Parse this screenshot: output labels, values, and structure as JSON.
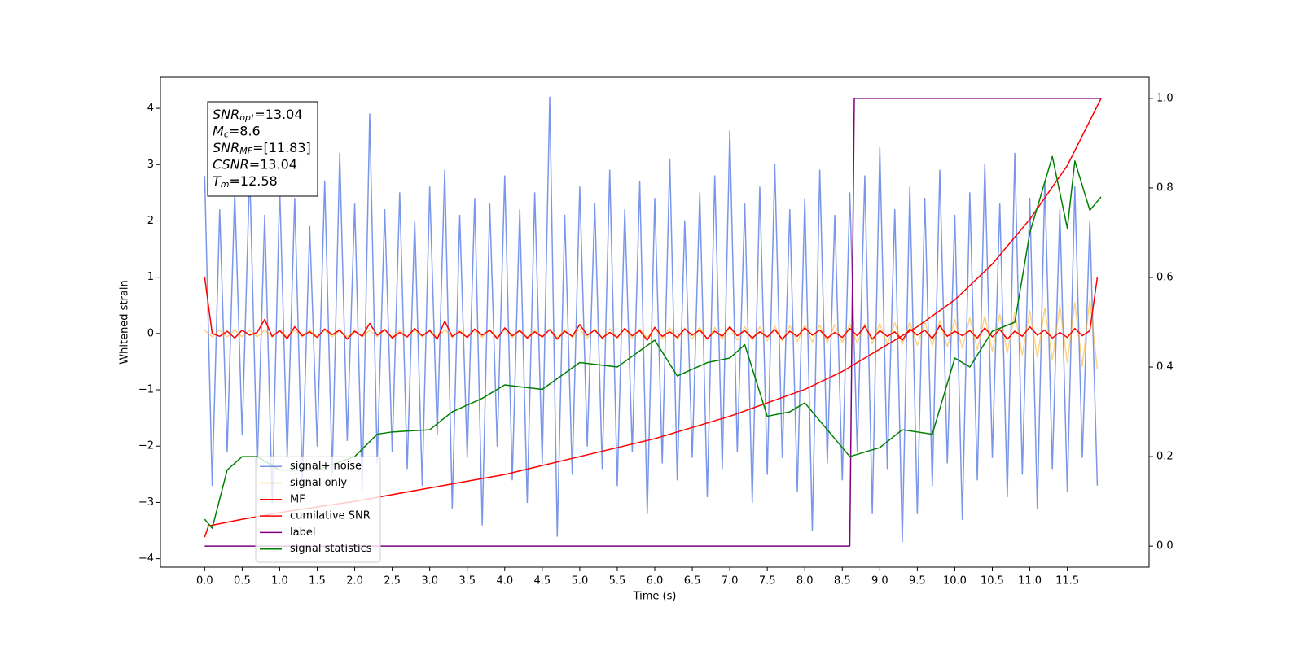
{
  "chart_data": {
    "type": "line",
    "xlabel": "Time (s)",
    "ylabel": "Whitened strain",
    "xlim": [
      -0.59,
      12.59
    ],
    "ylim": [
      -4.15,
      4.55
    ],
    "y2lim": [
      -0.047,
      1.047
    ],
    "xticks": [
      {
        "value": 0,
        "label": "0.0"
      },
      0.5,
      {
        "value": 1,
        "label": "1.0"
      },
      1.5,
      {
        "value": 2,
        "label": "2.0"
      },
      2.5,
      {
        "value": 3,
        "label": "3.0"
      },
      3.5,
      {
        "value": 4,
        "label": "4.0"
      },
      4.5,
      {
        "value": 5,
        "label": "5.0"
      },
      5.5,
      {
        "value": 6,
        "label": "6.0"
      },
      6.5,
      {
        "value": 7,
        "label": "7.0"
      },
      7.5,
      {
        "value": 8,
        "label": "8.0"
      },
      8.5,
      {
        "value": 9,
        "label": "9.0"
      },
      9.5,
      {
        "value": 10,
        "label": "10.0"
      },
      10.5,
      {
        "value": 11,
        "label": "11.0"
      },
      11.5
    ],
    "yticks": [
      {
        "value": -4,
        "label": "−4"
      },
      {
        "value": -3,
        "label": "−3"
      },
      {
        "value": -2,
        "label": "−2"
      },
      {
        "value": -1,
        "label": "−1"
      },
      0,
      1,
      2,
      3,
      4
    ],
    "y2ticks": [
      {
        "value": 0,
        "label": "0.0"
      },
      0.2,
      0.4,
      0.6,
      0.8,
      {
        "value": 1,
        "label": "1.0"
      }
    ],
    "legend": "lower left",
    "grid": false,
    "annotations": [
      {
        "text": "SNR",
        "sub": "opt",
        "value": "=13.04"
      },
      {
        "text": "M",
        "sub": "c",
        "value": "=8.6"
      },
      {
        "text": "SNR",
        "sub": "MF",
        "value": "=[11.83]"
      },
      {
        "text": "CSNR",
        "value": "=13.04"
      },
      {
        "text": "T",
        "sub": "m",
        "value": "=12.58"
      }
    ],
    "x": [
      0,
      0.1,
      0.2,
      0.3,
      0.4,
      0.5,
      0.6,
      0.7,
      0.8,
      0.9,
      1,
      1.1,
      1.2,
      1.3,
      1.4,
      1.5,
      1.6,
      1.7,
      1.8,
      1.9,
      2,
      2.1,
      2.2,
      2.3,
      2.4,
      2.5,
      2.6,
      2.7,
      2.8,
      2.9,
      3,
      3.1,
      3.2,
      3.3,
      3.4,
      3.5,
      3.6,
      3.7,
      3.8,
      3.9,
      4,
      4.1,
      4.2,
      4.3,
      4.4,
      4.5,
      4.6,
      4.7,
      4.8,
      4.9,
      5,
      5.1,
      5.2,
      5.3,
      5.4,
      5.5,
      5.6,
      5.7,
      5.8,
      5.9,
      6,
      6.1,
      6.2,
      6.3,
      6.4,
      6.5,
      6.6,
      6.7,
      6.8,
      6.9,
      7,
      7.1,
      7.2,
      7.3,
      7.4,
      7.5,
      7.6,
      7.7,
      7.8,
      7.9,
      8,
      8.1,
      8.2,
      8.3,
      8.4,
      8.5,
      8.6,
      8.7,
      8.8,
      8.9,
      9,
      9.1,
      9.2,
      9.3,
      9.4,
      9.5,
      9.6,
      9.7,
      9.8,
      9.9,
      10,
      10.1,
      10.2,
      10.3,
      10.4,
      10.5,
      10.6,
      10.7,
      10.8,
      10.9,
      11,
      11.1,
      11.2,
      11.3,
      11.4,
      11.5,
      11.6,
      11.7,
      11.8,
      11.9
    ],
    "series": [
      {
        "name": "signal+ noise",
        "color": "#4169e1",
        "alpha": 0.7,
        "values": [
          2.8,
          -2.7,
          2.2,
          -2.1,
          2.5,
          -1.8,
          2.9,
          -2.4,
          2.1,
          -3.0,
          2.6,
          -2.2,
          2.4,
          -2.6,
          1.9,
          -2.0,
          2.7,
          -2.5,
          3.2,
          -1.9,
          2.3,
          -2.8,
          3.9,
          -2.3,
          2.2,
          -2.1,
          2.5,
          -2.4,
          2.0,
          -2.7,
          2.6,
          -1.8,
          2.9,
          -3.1,
          2.1,
          -2.2,
          2.4,
          -3.4,
          2.3,
          -2.0,
          2.8,
          -2.6,
          2.2,
          -3.0,
          2.5,
          -2.3,
          4.2,
          -3.6,
          2.1,
          -2.5,
          2.6,
          -2.0,
          2.3,
          -2.4,
          2.9,
          -2.7,
          2.2,
          -2.1,
          2.7,
          -3.2,
          2.4,
          -2.3,
          3.1,
          -2.6,
          2.0,
          -2.2,
          2.5,
          -2.9,
          2.8,
          -2.4,
          3.6,
          -2.1,
          2.3,
          -3.0,
          2.6,
          -2.5,
          3.0,
          -2.2,
          2.2,
          -2.8,
          2.4,
          -3.5,
          2.9,
          -2.3,
          2.1,
          -2.6,
          2.5,
          -2.1,
          2.8,
          -3.2,
          3.3,
          -2.4,
          2.2,
          -3.7,
          2.6,
          -3.2,
          2.4,
          -2.7,
          2.9,
          -2.3,
          2.1,
          -3.3,
          2.5,
          -2.6,
          3.0,
          -2.2,
          2.3,
          -2.9,
          3.2,
          -2.5,
          2.4,
          -3.1,
          2.7,
          -2.4,
          2.2,
          -2.8,
          2.6,
          -2.2,
          2.0,
          -2.7
        ]
      },
      {
        "name": "signal only",
        "color": "#ffa500",
        "alpha": 0.5,
        "values": [
          0.06,
          -0.06,
          0.06,
          -0.06,
          0.06,
          -0.06,
          0.06,
          -0.06,
          0.06,
          -0.06,
          0.06,
          -0.06,
          0.06,
          -0.06,
          0.06,
          -0.06,
          0.06,
          -0.06,
          0.06,
          -0.06,
          0.06,
          -0.06,
          0.06,
          -0.06,
          0.06,
          -0.06,
          0.06,
          -0.06,
          0.06,
          -0.06,
          0.07,
          -0.07,
          0.07,
          -0.07,
          0.07,
          -0.07,
          0.07,
          -0.07,
          0.07,
          -0.07,
          0.07,
          -0.07,
          0.07,
          -0.07,
          0.07,
          -0.07,
          0.07,
          -0.07,
          0.07,
          -0.07,
          0.08,
          -0.08,
          0.08,
          -0.08,
          0.08,
          -0.08,
          0.08,
          -0.08,
          0.08,
          -0.08,
          0.1,
          -0.1,
          0.1,
          -0.1,
          0.1,
          -0.1,
          0.11,
          -0.11,
          0.11,
          -0.11,
          0.12,
          -0.12,
          0.12,
          -0.12,
          0.12,
          -0.13,
          0.13,
          -0.13,
          0.14,
          -0.14,
          0.15,
          -0.15,
          0.15,
          -0.16,
          0.16,
          -0.16,
          0.17,
          -0.17,
          0.17,
          -0.18,
          0.18,
          -0.19,
          0.19,
          -0.2,
          0.2,
          -0.21,
          0.21,
          -0.22,
          0.23,
          -0.24,
          0.25,
          -0.26,
          0.28,
          -0.29,
          0.31,
          -0.32,
          0.34,
          -0.35,
          0.37,
          -0.38,
          0.4,
          -0.42,
          0.45,
          -0.47,
          0.5,
          -0.52,
          0.55,
          -0.58,
          0.61,
          -0.64
        ]
      },
      {
        "name": "MF",
        "color": "#ff0000",
        "values": [
          1.0,
          0.0,
          -0.05,
          0.04,
          -0.08,
          0.06,
          -0.03,
          0.02,
          0.25,
          -0.05,
          0.05,
          -0.09,
          0.12,
          -0.04,
          0.03,
          -0.07,
          0.08,
          -0.02,
          0.06,
          -0.1,
          0.04,
          -0.05,
          0.18,
          -0.03,
          0.07,
          -0.08,
          0.02,
          -0.06,
          0.09,
          -0.04,
          0.05,
          -0.1,
          0.22,
          -0.05,
          0.03,
          -0.07,
          0.08,
          -0.03,
          0.06,
          -0.09,
          0.1,
          -0.04,
          0.05,
          -0.08,
          0.03,
          -0.06,
          0.07,
          -0.1,
          0.04,
          -0.05,
          0.16,
          -0.03,
          0.06,
          -0.08,
          0.02,
          -0.07,
          0.09,
          -0.04,
          0.05,
          -0.12,
          0.11,
          -0.05,
          0.03,
          -0.07,
          0.08,
          -0.03,
          0.06,
          -0.09,
          0.04,
          -0.05,
          0.12,
          -0.04,
          0.05,
          -0.08,
          0.03,
          -0.06,
          0.07,
          -0.1,
          0.04,
          -0.05,
          0.1,
          -0.03,
          0.06,
          -0.08,
          0.02,
          -0.07,
          0.09,
          -0.04,
          0.13,
          -0.1,
          0.05,
          -0.05,
          0.03,
          -0.12,
          0.08,
          -0.03,
          0.06,
          -0.09,
          0.14,
          -0.05,
          0.04,
          -0.04,
          0.05,
          -0.08,
          0.1,
          -0.06,
          0.07,
          -0.1,
          0.04,
          -0.05,
          0.12,
          -0.03,
          0.06,
          -0.08,
          0.02,
          -0.07,
          0.09,
          -0.04,
          0.05,
          1.0
        ]
      },
      {
        "name": "cumilative SNR",
        "color": "#ff0000",
        "axis": "y2",
        "x": [
          0,
          0.05,
          0.5,
          1,
          2,
          3,
          4,
          5,
          6,
          7,
          8,
          8.5,
          9,
          9.5,
          10,
          10.5,
          11,
          11.5,
          11.95
        ],
        "values": [
          0.02,
          0.045,
          0.06,
          0.075,
          0.1,
          0.13,
          0.16,
          0.2,
          0.24,
          0.29,
          0.35,
          0.39,
          0.44,
          0.49,
          0.55,
          0.63,
          0.73,
          0.85,
          1.0
        ]
      },
      {
        "name": "label",
        "color": "#800080",
        "axis": "y2",
        "x": [
          0,
          8.6,
          8.66,
          11.95
        ],
        "values": [
          0,
          0,
          1,
          1
        ]
      },
      {
        "name": "signal statistics",
        "color": "#008000",
        "axis": "y2",
        "x": [
          0,
          0.1,
          0.3,
          0.5,
          0.7,
          1,
          1.3,
          1.5,
          2,
          2.3,
          2.5,
          3,
          3.3,
          3.7,
          4,
          4.5,
          5,
          5.5,
          6,
          6.3,
          6.7,
          7,
          7.2,
          7.5,
          7.8,
          8,
          8.3,
          8.6,
          9,
          9.3,
          9.7,
          10,
          10.2,
          10.5,
          10.8,
          11,
          11.3,
          11.5,
          11.6,
          11.8,
          11.95
        ],
        "values": [
          0.06,
          0.04,
          0.17,
          0.2,
          0.2,
          0.17,
          0.17,
          0.17,
          0.2,
          0.25,
          0.255,
          0.26,
          0.3,
          0.33,
          0.36,
          0.35,
          0.41,
          0.4,
          0.46,
          0.38,
          0.41,
          0.42,
          0.45,
          0.29,
          0.3,
          0.32,
          0.26,
          0.2,
          0.22,
          0.26,
          0.25,
          0.42,
          0.4,
          0.48,
          0.5,
          0.7,
          0.87,
          0.71,
          0.86,
          0.75,
          0.78
        ]
      }
    ]
  }
}
